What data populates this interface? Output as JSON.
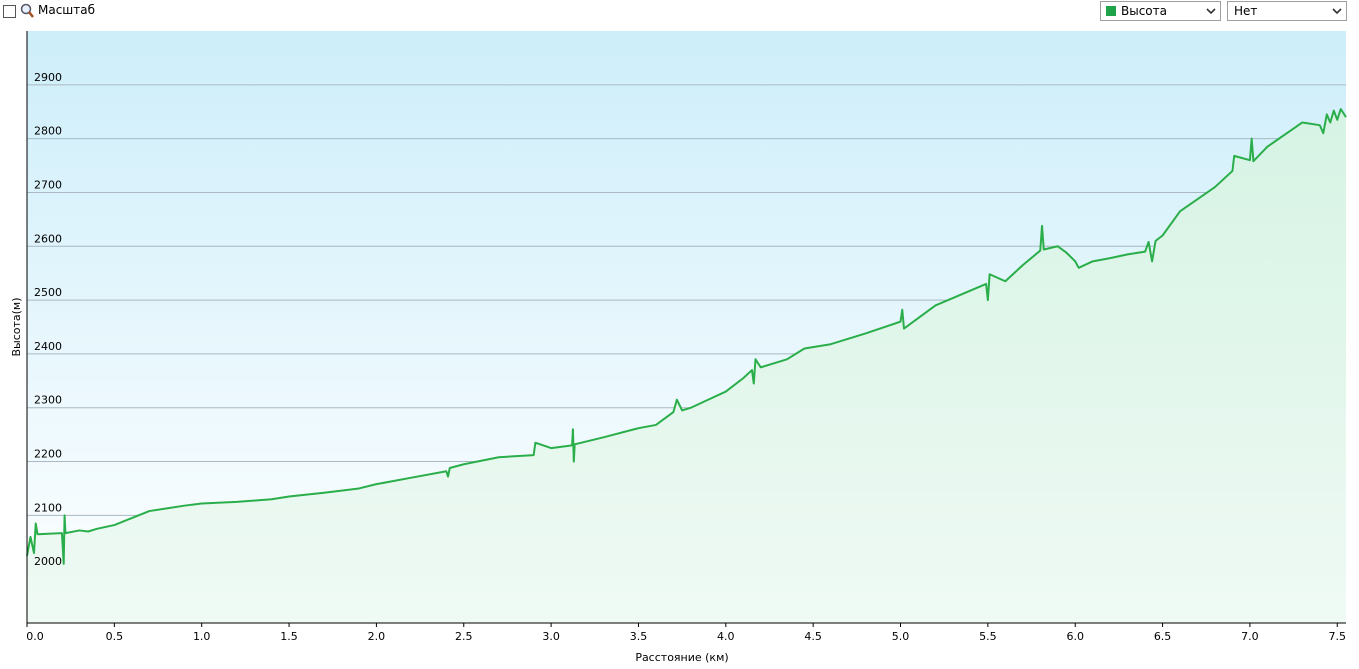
{
  "toolbar": {
    "zoom_label": "Масштаб",
    "metric_select": "Высота",
    "overlay_select": "Нет"
  },
  "chart_data": {
    "type": "line",
    "xlabel": "Расстояние (км)",
    "ylabel": "Высота(м)",
    "xlim": [
      0,
      7.55
    ],
    "ylim": [
      1900,
      3000
    ],
    "xticks": [
      {
        "value": 0,
        "label": "0.0"
      },
      0.5,
      {
        "value": 1,
        "label": "1.0"
      },
      1.5,
      {
        "value": 2,
        "label": "2.0"
      },
      2.5,
      {
        "value": 3,
        "label": "3.0"
      },
      3.5,
      {
        "value": 4,
        "label": "4.0"
      },
      4.5,
      {
        "value": 5,
        "label": "5.0"
      },
      5.5,
      {
        "value": 6,
        "label": "6.0"
      },
      6.5,
      {
        "value": 7,
        "label": "7.0"
      },
      7.5
    ],
    "yticks": [
      2000,
      2100,
      2200,
      2300,
      2400,
      2500,
      2600,
      2700,
      2800,
      2900
    ],
    "grid": true,
    "series": [
      {
        "name": "Высота",
        "color": "#2aae4a",
        "x": [
          0,
          0.02,
          0.04,
          0.05,
          0.06,
          0.2,
          0.21,
          0.215,
          0.22,
          0.3,
          0.35,
          0.4,
          0.5,
          0.6,
          0.7,
          0.8,
          0.9,
          1.0,
          1.2,
          1.4,
          1.5,
          1.7,
          1.9,
          2.0,
          2.2,
          2.4,
          2.41,
          2.42,
          2.5,
          2.7,
          2.9,
          2.91,
          3.0,
          3.12,
          3.125,
          3.13,
          3.135,
          3.3,
          3.5,
          3.6,
          3.7,
          3.72,
          3.75,
          3.8,
          3.9,
          4.0,
          4.1,
          4.15,
          4.16,
          4.17,
          4.2,
          4.35,
          4.45,
          4.6,
          4.8,
          5.0,
          5.01,
          5.02,
          5.2,
          5.49,
          5.5,
          5.51,
          5.6,
          5.7,
          5.8,
          5.81,
          5.82,
          5.9,
          5.95,
          6.0,
          6.02,
          6.1,
          6.2,
          6.3,
          6.4,
          6.42,
          6.44,
          6.46,
          6.5,
          6.6,
          6.8,
          6.9,
          6.91,
          7.0,
          7.01,
          7.02,
          7.1,
          7.3,
          7.4,
          7.42,
          7.44,
          7.46,
          7.48,
          7.5,
          7.52,
          7.55
        ],
        "values": [
          2025,
          2060,
          2030,
          2085,
          2065,
          2067,
          2010,
          2100,
          2067,
          2072,
          2070,
          2075,
          2082,
          2095,
          2108,
          2113,
          2118,
          2122,
          2125,
          2130,
          2135,
          2142,
          2150,
          2158,
          2170,
          2182,
          2172,
          2188,
          2195,
          2208,
          2212,
          2235,
          2225,
          2230,
          2260,
          2200,
          2232,
          2245,
          2262,
          2268,
          2292,
          2315,
          2295,
          2300,
          2315,
          2330,
          2355,
          2370,
          2345,
          2390,
          2375,
          2390,
          2410,
          2418,
          2438,
          2460,
          2482,
          2447,
          2490,
          2530,
          2500,
          2548,
          2535,
          2565,
          2592,
          2638,
          2594,
          2600,
          2588,
          2572,
          2560,
          2572,
          2578,
          2585,
          2590,
          2608,
          2572,
          2610,
          2620,
          2665,
          2710,
          2740,
          2768,
          2760,
          2800,
          2758,
          2785,
          2830,
          2825,
          2810,
          2845,
          2830,
          2852,
          2835,
          2855,
          2840
        ]
      }
    ]
  }
}
